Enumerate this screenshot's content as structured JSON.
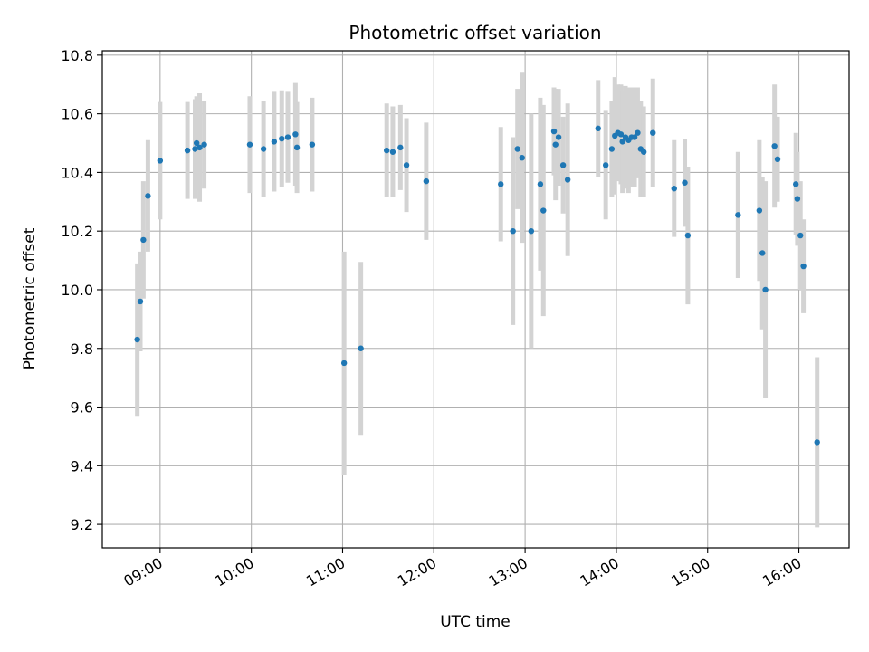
{
  "chart_data": {
    "type": "scatter",
    "title": "Photometric offset variation",
    "xlabel": "UTC time",
    "ylabel": "Photometric offset",
    "grid": true,
    "x_unit": "UTC time (HH:MM)",
    "xlim": [
      "08:22",
      "16:33"
    ],
    "ylim": [
      9.12,
      10.815
    ],
    "x_ticks": [
      "09:00",
      "10:00",
      "11:00",
      "12:00",
      "13:00",
      "14:00",
      "15:00",
      "16:00"
    ],
    "y_ticks": [
      "9.2",
      "9.4",
      "9.6",
      "9.8",
      "10.0",
      "10.2",
      "10.4",
      "10.6",
      "10.8"
    ],
    "colors": {
      "point": "#1f77b4",
      "errorbar": "#d3d3d3",
      "grid": "#b0b0b0"
    },
    "series": [
      {
        "x": [
          "08:45",
          "08:47",
          "08:49",
          "08:52",
          "09:00",
          "09:18",
          "09:23",
          "09:24",
          "09:26",
          "09:29",
          "09:59",
          "10:08",
          "10:15",
          "10:20",
          "10:24",
          "10:29",
          "10:30",
          "10:40",
          "11:01",
          "11:12",
          "11:29",
          "11:33",
          "11:38",
          "11:42",
          "11:55",
          "12:44",
          "12:52",
          "12:55",
          "12:58",
          "13:04",
          "13:10",
          "13:12",
          "13:19",
          "13:20",
          "13:22",
          "13:25",
          "13:28",
          "13:48",
          "13:53",
          "13:57",
          "13:59",
          "14:01",
          "14:03",
          "14:04",
          "14:06",
          "14:08",
          "14:10",
          "14:12",
          "14:14",
          "14:16",
          "14:18",
          "14:24",
          "14:38",
          "14:45",
          "14:47",
          "15:20",
          "15:34",
          "15:36",
          "15:38",
          "15:44",
          "15:46",
          "15:58",
          "15:59",
          "16:01",
          "16:03",
          "16:12"
        ],
        "y": [
          9.83,
          9.96,
          10.17,
          10.32,
          10.44,
          10.475,
          10.48,
          10.5,
          10.485,
          10.495,
          10.495,
          10.48,
          10.505,
          10.515,
          10.52,
          10.53,
          10.485,
          10.495,
          9.75,
          9.8,
          10.475,
          10.47,
          10.485,
          10.425,
          10.37,
          10.36,
          10.2,
          10.48,
          10.45,
          10.2,
          10.36,
          10.27,
          10.54,
          10.495,
          10.52,
          10.425,
          10.375,
          10.55,
          10.425,
          10.48,
          10.525,
          10.535,
          10.53,
          10.505,
          10.52,
          10.51,
          10.52,
          10.52,
          10.535,
          10.48,
          10.47,
          10.535,
          10.345,
          10.365,
          10.185,
          10.255,
          10.27,
          10.125,
          10.0,
          10.49,
          10.445,
          10.36,
          10.31,
          10.185,
          10.08,
          9.48
        ],
        "yerr": [
          0.26,
          0.17,
          0.2,
          0.19,
          0.2,
          0.165,
          0.17,
          0.16,
          0.185,
          0.15,
          0.165,
          0.165,
          0.17,
          0.165,
          0.155,
          0.175,
          0.155,
          0.16,
          0.38,
          0.295,
          0.16,
          0.155,
          0.145,
          0.16,
          0.2,
          0.195,
          0.32,
          0.205,
          0.29,
          0.4,
          0.295,
          0.36,
          0.15,
          0.19,
          0.165,
          0.165,
          0.26,
          0.165,
          0.185,
          0.165,
          0.2,
          0.165,
          0.17,
          0.175,
          0.175,
          0.18,
          0.17,
          0.17,
          0.155,
          0.165,
          0.155,
          0.185,
          0.165,
          0.15,
          0.235,
          0.215,
          0.24,
          0.26,
          0.37,
          0.21,
          0.145,
          0.175,
          0.16,
          0.185,
          0.16,
          0.29
        ]
      }
    ]
  }
}
